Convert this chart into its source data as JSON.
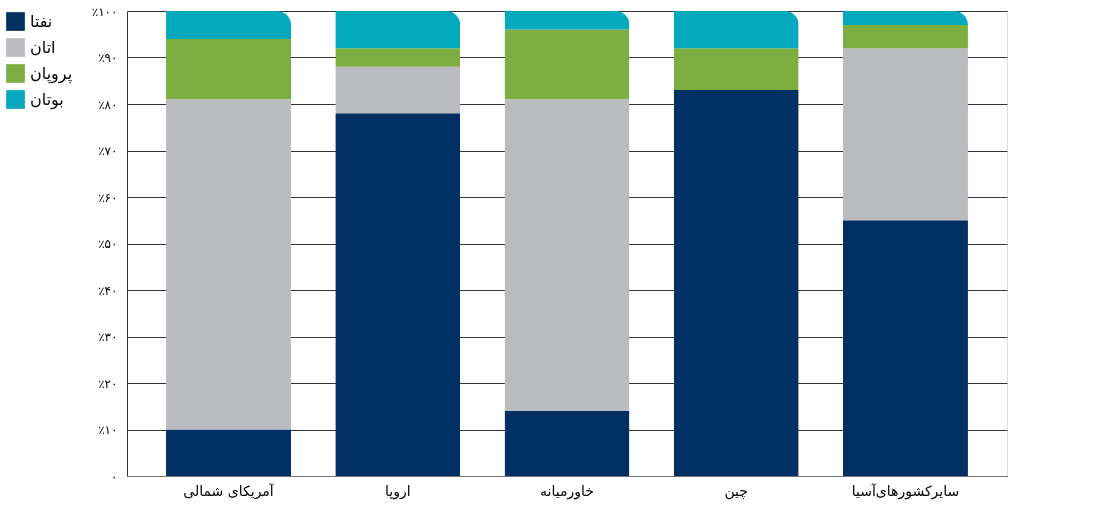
{
  "chart_data": {
    "type": "bar",
    "stacked": true,
    "categories": [
      "آمریکای شمالی",
      "اروپا",
      "خاورمیانه",
      "چین",
      "سایرکشورهای‌آسیا"
    ],
    "series": [
      {
        "name": "نفتا",
        "color": "#002f63",
        "values": [
          10,
          78,
          14,
          83,
          55
        ]
      },
      {
        "name": "اتان",
        "color": "#bbbcc0",
        "values": [
          71,
          10,
          67,
          0,
          37
        ]
      },
      {
        "name": "پروپان",
        "color": "#7cae42",
        "values": [
          13,
          4,
          15,
          9,
          5
        ]
      },
      {
        "name": "بوتان",
        "color": "#04a9bd",
        "values": [
          6,
          8,
          4,
          8,
          3
        ]
      }
    ],
    "ylim": [
      0,
      100
    ],
    "yticks": [
      {
        "value": 0,
        "label": "۰"
      },
      {
        "value": 10,
        "label": "٪۱۰"
      },
      {
        "value": 20,
        "label": "٪۲۰"
      },
      {
        "value": 30,
        "label": "٪۳۰"
      },
      {
        "value": 40,
        "label": "٪۴۰"
      },
      {
        "value": 50,
        "label": "٪۵۰"
      },
      {
        "value": 60,
        "label": "٪۶۰"
      },
      {
        "value": 70,
        "label": "٪۷۰"
      },
      {
        "value": 80,
        "label": "٪۸۰"
      },
      {
        "value": 90,
        "label": "٪۹۰"
      },
      {
        "value": 100,
        "label": "٪۱۰۰"
      }
    ],
    "grid": "y",
    "legend": "left"
  }
}
